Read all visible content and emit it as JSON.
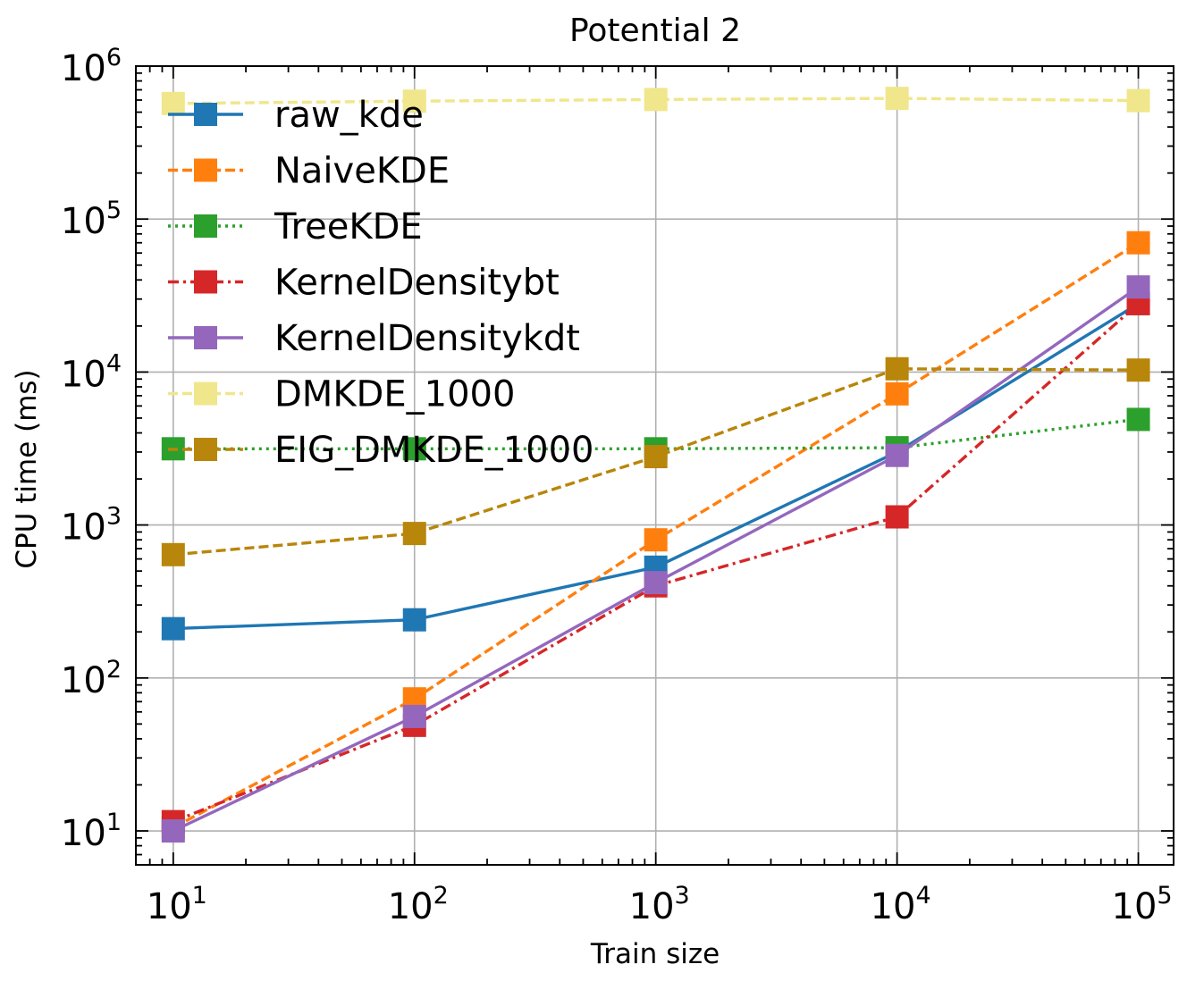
{
  "chart_data": {
    "type": "line",
    "title": "Potential 2",
    "xlabel": "Train size",
    "ylabel": "CPU time (ms)",
    "xscale": "log",
    "yscale": "log",
    "xlim": [
      7,
      140000
    ],
    "ylim": [
      6,
      1000000
    ],
    "grid": true,
    "legend_position": "top-left",
    "x": [
      10,
      100,
      1000,
      10000,
      100000
    ],
    "x_ticks": [
      {
        "value": 10,
        "base": "10",
        "exp": "1"
      },
      {
        "value": 100,
        "base": "10",
        "exp": "2"
      },
      {
        "value": 1000,
        "base": "10",
        "exp": "3"
      },
      {
        "value": 10000,
        "base": "10",
        "exp": "4"
      },
      {
        "value": 100000,
        "base": "10",
        "exp": "5"
      }
    ],
    "y_ticks": [
      {
        "value": 10,
        "base": "10",
        "exp": "1"
      },
      {
        "value": 100,
        "base": "10",
        "exp": "2"
      },
      {
        "value": 1000,
        "base": "10",
        "exp": "3"
      },
      {
        "value": 10000,
        "base": "10",
        "exp": "4"
      },
      {
        "value": 100000,
        "base": "10",
        "exp": "5"
      },
      {
        "value": 1000000,
        "base": "10",
        "exp": "6"
      }
    ],
    "series": [
      {
        "name": "raw_kde",
        "color": "#1f77b4",
        "dash": "solid",
        "values": [
          210,
          240,
          530,
          3000,
          28000
        ]
      },
      {
        "name": "NaiveKDE",
        "color": "#ff7f0e",
        "dash": "dashed",
        "values": [
          10.5,
          73,
          800,
          7200,
          70000
        ]
      },
      {
        "name": "TreeKDE",
        "color": "#2ca02c",
        "dash": "dotted",
        "values": [
          3150,
          3150,
          3150,
          3200,
          4900
        ]
      },
      {
        "name": "KernelDensitybt",
        "color": "#d62728",
        "dash": "dashdot",
        "values": [
          11.5,
          49,
          400,
          1130,
          28000
        ]
      },
      {
        "name": "KernelDensitykdt",
        "color": "#9467bd",
        "dash": "solid",
        "values": [
          10,
          56,
          420,
          2850,
          36000
        ]
      },
      {
        "name": "DMKDE_1000",
        "color": "#f0e68c",
        "dash": "dashed",
        "values": [
          570000,
          590000,
          605000,
          615000,
          595000
        ]
      },
      {
        "name": "EIG_DMKDE_1000",
        "color": "#b8860b",
        "dash": "dashed",
        "values": [
          640,
          880,
          2800,
          10500,
          10300
        ]
      }
    ]
  }
}
